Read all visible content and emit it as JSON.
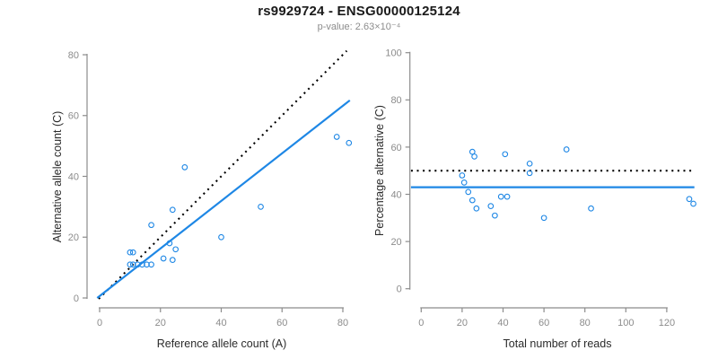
{
  "header": {
    "title": "rs9929724 - ENSG00000125124",
    "subtitle": "p-value: 2.63×10⁻⁴"
  },
  "colors": {
    "accent_blue": "#1E87E5",
    "dotted_black": "#000000",
    "axis_gray": "#8C8C8C",
    "tick_label_gray": "#8C8C8C",
    "axis_title_dark": "#2B2B2B",
    "title_black": "#1A1A1A"
  },
  "chart_data": [
    {
      "name": "allele-count-scatter",
      "type": "scatter",
      "xlabel": "Reference allele count (A)",
      "ylabel": "Alternative allele count (C)",
      "xlim": [
        0,
        80
      ],
      "ylim": [
        0,
        80
      ],
      "xticks": [
        0,
        20,
        40,
        60,
        80
      ],
      "yticks": [
        0,
        20,
        40,
        60,
        80
      ],
      "grid": false,
      "points": [
        [
          10,
          15
        ],
        [
          11,
          15
        ],
        [
          17,
          24
        ],
        [
          24,
          29
        ],
        [
          28,
          43
        ],
        [
          10,
          11
        ],
        [
          11,
          11
        ],
        [
          12.5,
          11
        ],
        [
          14,
          11
        ],
        [
          15.5,
          11
        ],
        [
          17,
          11
        ],
        [
          21,
          13
        ],
        [
          23,
          18
        ],
        [
          25,
          16
        ],
        [
          24,
          12.5
        ],
        [
          40,
          20
        ],
        [
          53,
          30
        ],
        [
          78,
          53
        ],
        [
          82,
          51
        ]
      ],
      "lines": [
        {
          "name": "identity-dotted-line",
          "style": "dotted",
          "color": "#000000",
          "from": [
            -0.3,
            -0.3
          ],
          "to": [
            81.3,
            81.3
          ]
        },
        {
          "name": "regression-line",
          "style": "solid",
          "color": "#1E87E5",
          "from": [
            -0.8,
            0
          ],
          "to": [
            82.3,
            65
          ]
        }
      ]
    },
    {
      "name": "percentage-scatter",
      "type": "scatter",
      "xlabel": "Total number of reads",
      "ylabel": "Percentage alternative (C)",
      "xlim": [
        0,
        120
      ],
      "ylim": [
        0,
        100
      ],
      "xticks": [
        0,
        20,
        40,
        60,
        80,
        100,
        120
      ],
      "yticks": [
        0,
        20,
        40,
        60,
        80,
        100
      ],
      "grid": false,
      "points": [
        [
          25,
          58
        ],
        [
          26,
          56
        ],
        [
          41,
          57
        ],
        [
          71,
          59
        ],
        [
          53,
          53
        ],
        [
          53,
          49
        ],
        [
          20,
          48
        ],
        [
          21,
          45
        ],
        [
          23,
          41
        ],
        [
          25,
          37.5
        ],
        [
          27,
          34
        ],
        [
          34,
          35
        ],
        [
          36,
          31
        ],
        [
          39,
          39
        ],
        [
          42,
          39
        ],
        [
          60,
          30
        ],
        [
          83,
          34
        ],
        [
          131,
          38
        ],
        [
          133,
          36
        ]
      ],
      "lines": [
        {
          "name": "expected-50pct-dotted-line",
          "style": "dotted",
          "color": "#000000",
          "from": [
            -5,
            50
          ],
          "to": [
            133.5,
            50
          ]
        },
        {
          "name": "mean-percentage-line",
          "style": "solid",
          "color": "#1E87E5",
          "from": [
            -5,
            43
          ],
          "to": [
            133.5,
            43
          ]
        }
      ]
    }
  ]
}
